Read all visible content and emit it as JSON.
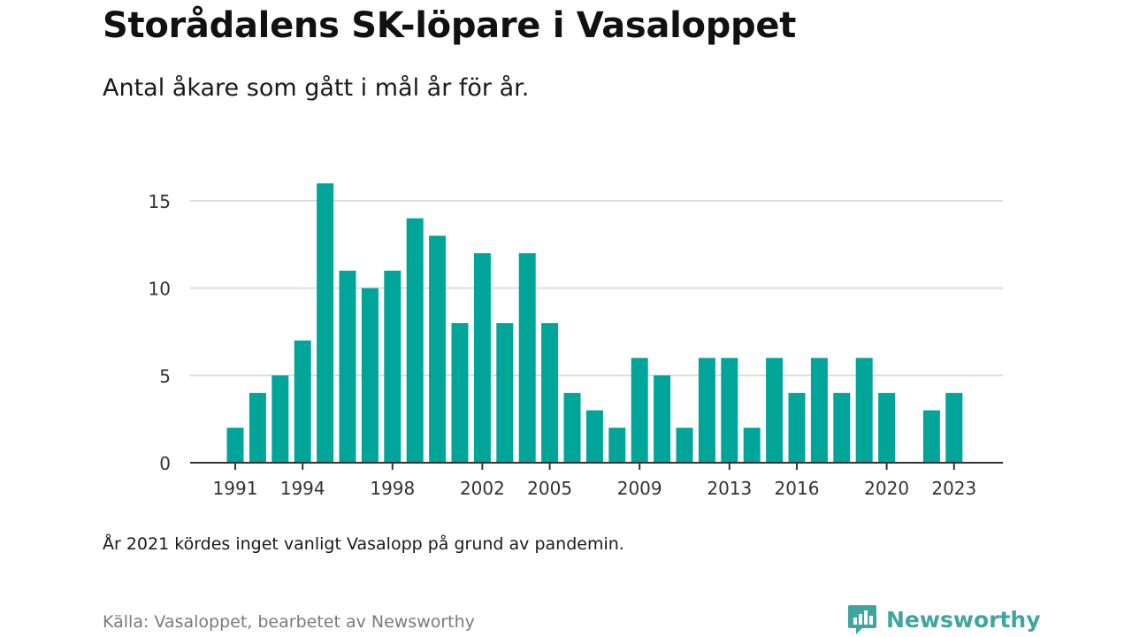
{
  "header": {
    "title": "Storådalens SK-löpare i Vasaloppet",
    "subtitle": "Antal åkare som gått i mål år för år."
  },
  "note": "År 2021 kördes inget vanligt Vasalopp på grund av pandemin.",
  "source": "Källa: Vasaloppet, bearbetet av Newsworthy",
  "brand": {
    "name": "Newsworthy",
    "icon": "newsworthy-logo-icon",
    "color": "#3fa69f"
  },
  "colors": {
    "bar": "#00a59a",
    "grid": "#dddddd",
    "axis": "#333333"
  },
  "chart_data": {
    "type": "bar",
    "title": "Storådalens SK-löpare i Vasaloppet",
    "subtitle": "Antal åkare som gått i mål år för år.",
    "xlabel": "",
    "ylabel": "",
    "x": [
      1991,
      1992,
      1993,
      1994,
      1995,
      1996,
      1997,
      1998,
      1999,
      2000,
      2001,
      2002,
      2003,
      2004,
      2005,
      2006,
      2007,
      2008,
      2009,
      2010,
      2011,
      2012,
      2013,
      2014,
      2015,
      2016,
      2017,
      2018,
      2019,
      2020,
      2021,
      2022,
      2023
    ],
    "values": [
      2,
      4,
      5,
      7,
      16,
      11,
      10,
      11,
      14,
      13,
      8,
      12,
      8,
      12,
      8,
      4,
      3,
      2,
      6,
      5,
      2,
      6,
      6,
      2,
      6,
      4,
      6,
      4,
      6,
      4,
      0,
      3,
      4
    ],
    "ylim": [
      0,
      16
    ],
    "yticks": [
      0,
      5,
      10,
      15
    ],
    "xticks": [
      1991,
      1994,
      1998,
      2002,
      2005,
      2009,
      2013,
      2016,
      2020,
      2023
    ],
    "grid": "horizontal",
    "legend": "none"
  }
}
